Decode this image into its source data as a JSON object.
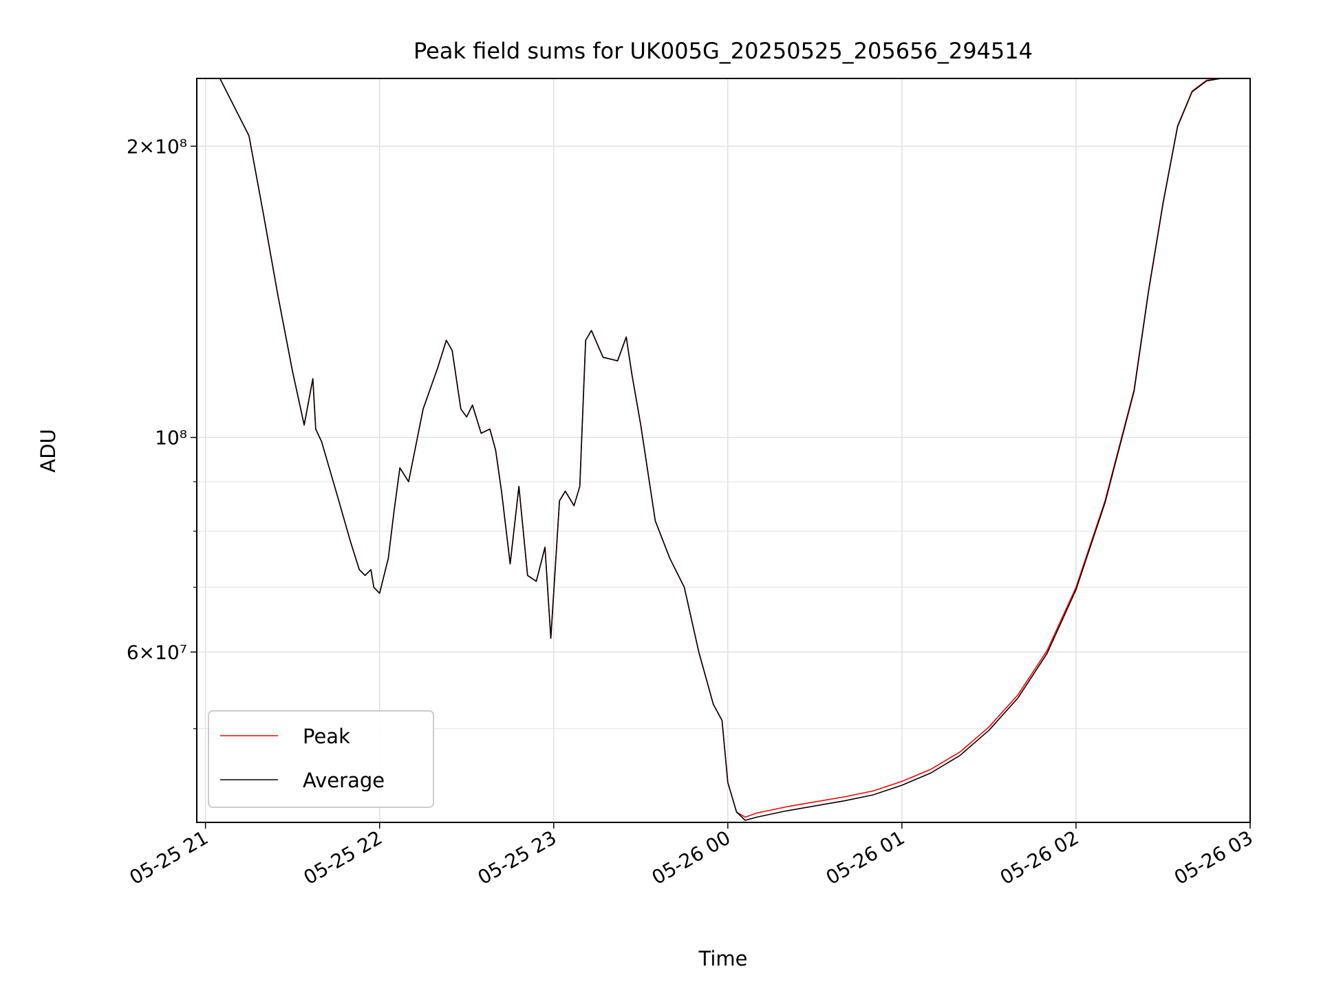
{
  "chart_data": {
    "type": "line",
    "title": "Peak field sums for UK005G_20250525_205656_294514",
    "xlabel": "Time",
    "ylabel": "ADU",
    "yscale": "log",
    "ylim": [
      40000000,
      235000000
    ],
    "xlim": [
      "2025-05-25 20:57",
      "2025-05-26 03:00"
    ],
    "x_ticks": [
      "05-25 21",
      "05-25 22",
      "05-25 23",
      "05-26 00",
      "05-26 01",
      "05-26 02",
      "05-26 03"
    ],
    "y_ticks": [
      "2×10⁸",
      "10⁸",
      "6×10⁷"
    ],
    "grid": true,
    "legend_position": "lower-left",
    "colors": {
      "Peak": "#ff0000",
      "Average": "#000000"
    },
    "x": [
      "2025-05-25 20:57",
      "2025-05-25 21:05",
      "2025-05-25 21:15",
      "2025-05-25 21:20",
      "2025-05-25 21:25",
      "2025-05-25 21:30",
      "2025-05-25 21:34",
      "2025-05-25 21:37",
      "2025-05-25 21:38",
      "2025-05-25 21:40",
      "2025-05-25 21:45",
      "2025-05-25 21:50",
      "2025-05-25 21:53",
      "2025-05-25 21:55",
      "2025-05-25 21:57",
      "2025-05-25 21:58",
      "2025-05-25 22:00",
      "2025-05-25 22:03",
      "2025-05-25 22:05",
      "2025-05-25 22:07",
      "2025-05-25 22:10",
      "2025-05-25 22:15",
      "2025-05-25 22:20",
      "2025-05-25 22:23",
      "2025-05-25 22:25",
      "2025-05-25 22:28",
      "2025-05-25 22:30",
      "2025-05-25 22:32",
      "2025-05-25 22:35",
      "2025-05-25 22:38",
      "2025-05-25 22:40",
      "2025-05-25 22:42",
      "2025-05-25 22:45",
      "2025-05-25 22:48",
      "2025-05-25 22:51",
      "2025-05-25 22:54",
      "2025-05-25 22:57",
      "2025-05-25 22:59",
      "2025-05-25 23:02",
      "2025-05-25 23:04",
      "2025-05-25 23:07",
      "2025-05-25 23:09",
      "2025-05-25 23:11",
      "2025-05-25 23:13",
      "2025-05-25 23:17",
      "2025-05-25 23:22",
      "2025-05-25 23:25",
      "2025-05-25 23:27",
      "2025-05-25 23:30",
      "2025-05-25 23:35",
      "2025-05-25 23:40",
      "2025-05-25 23:45",
      "2025-05-25 23:50",
      "2025-05-25 23:55",
      "2025-05-25 23:58",
      "2025-05-26 00:00",
      "2025-05-26 00:03",
      "2025-05-26 00:06",
      "2025-05-26 00:10",
      "2025-05-26 00:20",
      "2025-05-26 00:30",
      "2025-05-26 00:40",
      "2025-05-26 00:50",
      "2025-05-26 01:00",
      "2025-05-26 01:10",
      "2025-05-26 01:20",
      "2025-05-26 01:30",
      "2025-05-26 01:40",
      "2025-05-26 01:50",
      "2025-05-26 02:00",
      "2025-05-26 02:10",
      "2025-05-26 02:20",
      "2025-05-26 02:25",
      "2025-05-26 02:30",
      "2025-05-26 02:35",
      "2025-05-26 02:40",
      "2025-05-26 02:45",
      "2025-05-26 02:50"
    ],
    "series": [
      {
        "name": "Peak",
        "values": [
          235000000,
          235000000,
          205000000,
          170000000,
          140000000,
          117000000,
          103000000,
          115000000,
          102000000,
          99000000,
          88000000,
          78000000,
          73000000,
          72000000,
          73000000,
          70000000,
          69000000,
          75000000,
          84000000,
          93000000,
          90000000,
          107000000,
          118000000,
          126000000,
          123000000,
          107000000,
          105000000,
          108000000,
          101000000,
          102000000,
          97000000,
          88000000,
          74000000,
          89000000,
          72000000,
          71000000,
          77000000,
          62000000,
          86000000,
          88000000,
          85000000,
          89000000,
          126000000,
          129000000,
          121000000,
          120000000,
          127000000,
          116000000,
          103000000,
          82000000,
          75000000,
          70000000,
          60000000,
          53000000,
          51000000,
          44000000,
          41000000,
          40500000,
          40900000,
          41500000,
          42000000,
          42500000,
          43100000,
          44100000,
          45400000,
          47300000,
          50200000,
          54200000,
          60200000,
          70000000,
          86000000,
          112000000,
          142000000,
          175000000,
          210000000,
          228000000,
          234000000,
          235000000
        ]
      },
      {
        "name": "Average",
        "values": [
          235000000,
          235000000,
          205000000,
          170000000,
          140000000,
          117000000,
          103000000,
          115000000,
          102000000,
          99000000,
          88000000,
          78000000,
          73000000,
          72000000,
          73000000,
          70000000,
          69000000,
          75000000,
          84000000,
          93000000,
          90000000,
          107000000,
          118000000,
          126000000,
          123000000,
          107000000,
          105000000,
          108000000,
          101000000,
          102000000,
          97000000,
          88000000,
          74000000,
          89000000,
          72000000,
          71000000,
          77000000,
          62000000,
          86000000,
          88000000,
          85000000,
          89000000,
          126000000,
          129000000,
          121000000,
          120000000,
          127000000,
          116000000,
          103000000,
          82000000,
          75000000,
          70000000,
          60000000,
          53000000,
          51000000,
          44000000,
          41000000,
          40200000,
          40500000,
          41100000,
          41600000,
          42100000,
          42700000,
          43700000,
          45000000,
          46900000,
          49800000,
          53800000,
          59800000,
          69600000,
          85600000,
          111600000,
          141600000,
          174600000,
          209600000,
          227600000,
          233600000,
          235000000
        ]
      }
    ]
  }
}
